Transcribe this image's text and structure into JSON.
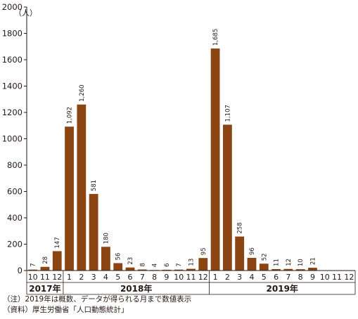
{
  "chart_data": {
    "type": "bar",
    "unit_label": "（人）",
    "ylim": [
      0,
      2000
    ],
    "y_ticks": [
      0,
      200,
      400,
      600,
      800,
      1000,
      1200,
      1400,
      1600,
      1800,
      2000
    ],
    "bar_color": "#8b4513",
    "categories": [
      "10",
      "11",
      "12",
      "1",
      "2",
      "3",
      "4",
      "5",
      "6",
      "7",
      "8",
      "9",
      "10",
      "11",
      "12",
      "1",
      "2",
      "3",
      "4",
      "5",
      "6",
      "7",
      "8",
      "9",
      "10",
      "11",
      "12"
    ],
    "values": [
      7,
      28,
      147,
      1092,
      1260,
      581,
      180,
      56,
      23,
      8,
      4,
      6,
      7,
      13,
      95,
      1685,
      1107,
      258,
      96,
      52,
      11,
      12,
      10,
      21,
      null,
      null,
      null
    ],
    "value_labels": [
      "7",
      "28",
      "147",
      "1,092",
      "1,260",
      "581",
      "180",
      "56",
      "23",
      "8",
      "4",
      "6",
      "7",
      "13",
      "95",
      "1,685",
      "1,107",
      "258",
      "96",
      "52",
      "11",
      "12",
      "10",
      "21",
      "",
      "",
      ""
    ],
    "year_groups": [
      {
        "label": "2017年",
        "start": 0,
        "count": 3
      },
      {
        "label": "2018年",
        "start": 3,
        "count": 12
      },
      {
        "label": "2019年",
        "start": 15,
        "count": 12
      }
    ],
    "grid": false
  },
  "notes": {
    "note": "（注）2019年は概数、データが得られる月まで数値表示",
    "source": "（資料）厚生労働省「人口動態統計」"
  }
}
